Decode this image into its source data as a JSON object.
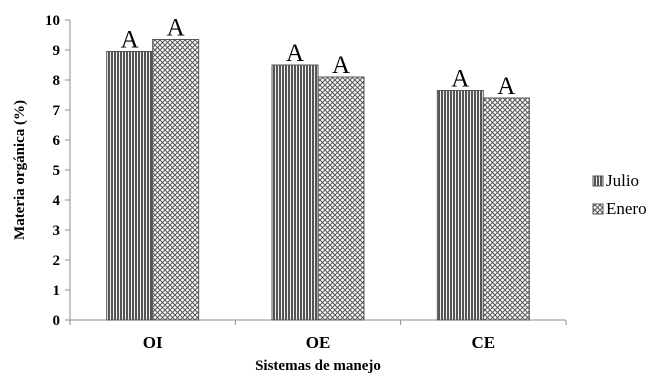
{
  "chart_data": {
    "type": "bar",
    "categories": [
      "OI",
      "OE",
      "CE"
    ],
    "series": [
      {
        "name": "Julio",
        "values": [
          8.95,
          8.5,
          7.65
        ],
        "pattern": "vertical-stripes",
        "color": "#555555"
      },
      {
        "name": "Enero",
        "values": [
          9.35,
          8.1,
          7.4
        ],
        "pattern": "crosshatch",
        "color": "#555555"
      }
    ],
    "annotations": [
      [
        "A",
        "A"
      ],
      [
        "A",
        "A"
      ],
      [
        "A",
        "A"
      ]
    ],
    "xlabel": "Sistemas de manejo",
    "ylabel": "Materia orgánica (%)",
    "ylim": [
      0,
      10
    ],
    "yticks": [
      0,
      1,
      2,
      3,
      4,
      5,
      6,
      7,
      8,
      9,
      10
    ],
    "grid": false,
    "legend_position": "right"
  }
}
